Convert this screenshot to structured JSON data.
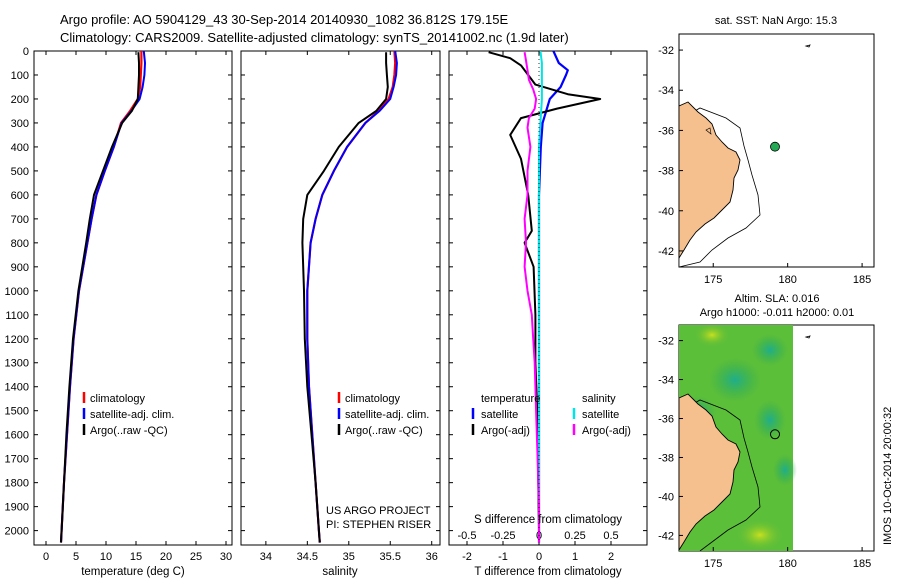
{
  "header": {
    "line1": "Argo profile: AO 5904129_43 30-Sep-2014 20140930_1082 36.812S 179.15E",
    "line2": "Climatology: CARS2009. Satellite-adjusted climatology: synTS_20141002.nc (1.9d later)"
  },
  "colors": {
    "climatology": "#ff0000",
    "satellite": "#0000ff",
    "argo": "#000000",
    "sal_satellite": "#00e5e5",
    "sal_argo": "#ff00ff",
    "land": "#f5c08e",
    "float_marker": "#22aa55"
  },
  "chart_data": [
    {
      "type": "line",
      "panel": "temperature",
      "xlabel": "temperature (deg C)",
      "ylabel": "",
      "xlim": [
        -2,
        31
      ],
      "ylim": [
        2060,
        0
      ],
      "xticks": [
        "0",
        "5",
        "10",
        "15",
        "20",
        "25",
        "30"
      ],
      "yticks": [
        "0",
        "100",
        "200",
        "300",
        "400",
        "500",
        "600",
        "700",
        "800",
        "900",
        "1000",
        "1100",
        "1200",
        "1300",
        "1400",
        "1500",
        "1600",
        "1700",
        "1800",
        "1900",
        "2000"
      ],
      "legend": [
        "climatology",
        "satellite-adj. clim.",
        "Argo(..raw -QC)"
      ],
      "series": [
        {
          "name": "climatology",
          "depth": [
            0,
            50,
            100,
            150,
            200,
            250,
            300,
            400,
            500,
            600,
            700,
            800,
            1000,
            1200,
            1400,
            1600,
            1800,
            2000,
            2050
          ],
          "values": [
            15.9,
            15.9,
            15.8,
            15.7,
            15.3,
            14.0,
            12.5,
            11.3,
            9.8,
            8.4,
            7.6,
            6.9,
            5.5,
            4.6,
            4.0,
            3.5,
            3.0,
            2.6,
            2.5
          ]
        },
        {
          "name": "satellite-adj. clim.",
          "depth": [
            0,
            50,
            100,
            150,
            200,
            250,
            300,
            400,
            500,
            600,
            700,
            800,
            1000,
            1200,
            1400,
            1600,
            1800,
            2000,
            2050
          ],
          "values": [
            16.3,
            16.5,
            16.4,
            16.1,
            15.6,
            14.2,
            12.6,
            11.3,
            9.8,
            8.4,
            7.6,
            6.9,
            5.5,
            4.6,
            4.0,
            3.5,
            3.0,
            2.6,
            2.5
          ]
        },
        {
          "name": "Argo(..raw -QC)",
          "depth": [
            5,
            50,
            100,
            150,
            200,
            250,
            300,
            400,
            500,
            600,
            700,
            800,
            1000,
            1200,
            1400,
            1600,
            1800,
            2000,
            2050
          ],
          "values": [
            15.4,
            15.5,
            15.5,
            15.4,
            15.3,
            14.3,
            12.7,
            11.0,
            9.5,
            8.0,
            7.3,
            6.7,
            5.4,
            4.5,
            3.9,
            3.4,
            3.0,
            2.6,
            2.5
          ]
        }
      ]
    },
    {
      "type": "line",
      "panel": "salinity",
      "xlabel": "salinity",
      "ylabel": "",
      "xlim": [
        33.7,
        36.1
      ],
      "ylim": [
        2060,
        0
      ],
      "xticks": [
        "34",
        "34.5",
        "35",
        "35.5",
        "36"
      ],
      "legend": [
        "climatology",
        "satellite-adj. clim.",
        "Argo(..raw -QC)"
      ],
      "annotation": [
        "US ARGO PROJECT",
        "PI: STEPHEN RISER"
      ],
      "series": [
        {
          "name": "climatology",
          "depth": [
            0,
            50,
            100,
            150,
            200,
            250,
            300,
            400,
            500,
            600,
            700,
            800,
            1000,
            1200,
            1400,
            1600,
            1800,
            2000,
            2050
          ],
          "values": [
            35.55,
            35.56,
            35.55,
            35.53,
            35.48,
            35.36,
            35.2,
            34.98,
            34.82,
            34.68,
            34.6,
            34.54,
            34.5,
            34.5,
            34.52,
            34.56,
            34.6,
            34.64,
            34.65
          ]
        },
        {
          "name": "satellite-adj. clim.",
          "depth": [
            0,
            50,
            100,
            150,
            200,
            250,
            300,
            400,
            500,
            600,
            700,
            800,
            1000,
            1200,
            1400,
            1600,
            1800,
            2000,
            2050
          ],
          "values": [
            35.56,
            35.58,
            35.57,
            35.54,
            35.5,
            35.37,
            35.2,
            34.98,
            34.82,
            34.68,
            34.6,
            34.54,
            34.5,
            34.5,
            34.52,
            34.56,
            34.6,
            34.64,
            34.65
          ]
        },
        {
          "name": "Argo(..raw -QC)",
          "depth": [
            5,
            50,
            100,
            150,
            200,
            250,
            300,
            400,
            500,
            600,
            700,
            800,
            1000,
            1200,
            1400,
            1600,
            1800,
            2000,
            2050
          ],
          "values": [
            35.45,
            35.45,
            35.46,
            35.47,
            35.45,
            35.33,
            35.12,
            34.88,
            34.7,
            34.5,
            34.45,
            34.44,
            34.46,
            34.47,
            34.5,
            34.55,
            34.6,
            34.64,
            34.65
          ]
        }
      ]
    },
    {
      "type": "line",
      "panel": "difference",
      "xlabel": "T difference from climatology",
      "title_top": "S difference from climatology",
      "xlim": [
        -2.5,
        3.0
      ],
      "ylim": [
        2060,
        0
      ],
      "xticks": [
        "-2",
        "-1",
        "0",
        "1",
        "2"
      ],
      "top_ticks": [
        "-0.5",
        "-0.25",
        "0",
        "0.25",
        "0.5"
      ],
      "legend": {
        "temperature_heading": "temperature",
        "salinity_heading": "salinity",
        "items": [
          "satellite",
          "Argo(-adj)",
          "satellite",
          "Argo(-adj)"
        ]
      },
      "series": [
        {
          "name": "temperature satellite",
          "depth": [
            0,
            50,
            80,
            100,
            150,
            200,
            300,
            400,
            600,
            800,
            1000,
            1300,
            1600,
            2000,
            2050
          ],
          "values": [
            0.4,
            0.55,
            0.8,
            0.75,
            0.6,
            0.3,
            0.1,
            0.05,
            0.0,
            0.0,
            0.0,
            0.0,
            0.0,
            0.0,
            0.0
          ]
        },
        {
          "name": "temperature Argo(-adj)",
          "depth": [
            5,
            30,
            60,
            100,
            140,
            180,
            200,
            240,
            280,
            350,
            450,
            600,
            750,
            800,
            900,
            1100,
            1300,
            1500,
            2000,
            2050
          ],
          "values": [
            -1.4,
            -0.8,
            -0.5,
            -0.3,
            -0.1,
            0.8,
            1.7,
            0.5,
            -0.5,
            -0.8,
            -0.5,
            -0.3,
            -0.2,
            -0.4,
            -0.15,
            -0.1,
            -0.1,
            -0.05,
            0.0,
            0.0
          ]
        },
        {
          "name": "salinity satellite",
          "depth": [
            0,
            50,
            100,
            200,
            300,
            400,
            600,
            800,
            1000,
            1300,
            1600,
            2000,
            2050
          ],
          "values": [
            0.01,
            0.02,
            0.02,
            0.02,
            0.01,
            0.0,
            0.0,
            0.0,
            0.0,
            0.0,
            0.0,
            0.0,
            0.0
          ]
        },
        {
          "name": "salinity Argo(-adj)",
          "depth": [
            5,
            40,
            80,
            120,
            160,
            200,
            240,
            280,
            320,
            400,
            500,
            600,
            700,
            800,
            900,
            1000,
            1100,
            1200,
            1300,
            1500,
            1700,
            1900,
            2050
          ],
          "values": [
            -0.1,
            -0.09,
            -0.08,
            -0.07,
            -0.04,
            -0.02,
            -0.03,
            -0.07,
            -0.08,
            -0.06,
            -0.08,
            -0.08,
            -0.1,
            -0.09,
            -0.1,
            -0.08,
            -0.05,
            -0.04,
            -0.03,
            -0.02,
            -0.01,
            0.0,
            0.0
          ]
        }
      ]
    },
    {
      "type": "map",
      "panel": "sst-map",
      "title": "sat. SST: NaN Argo: 15.3",
      "xticks": [
        "175",
        "180",
        "185"
      ],
      "yticks": [
        "-32",
        "-34",
        "-36",
        "-38",
        "-40",
        "-42"
      ],
      "float_lon": 179.15,
      "float_lat": -36.812
    },
    {
      "type": "map",
      "panel": "sla-map",
      "title_line1": "Altim. SLA: 0.016",
      "title_line2": "Argo h1000: -0.011 h2000: 0.01",
      "xticks": [
        "175",
        "180",
        "185"
      ],
      "yticks": [
        "-32",
        "-34",
        "-36",
        "-38",
        "-40",
        "-42"
      ],
      "float_lon": 179.15,
      "float_lat": -36.812
    }
  ],
  "footer": {
    "credit": "IMOS 10-Oct-2014 20:00:32"
  }
}
